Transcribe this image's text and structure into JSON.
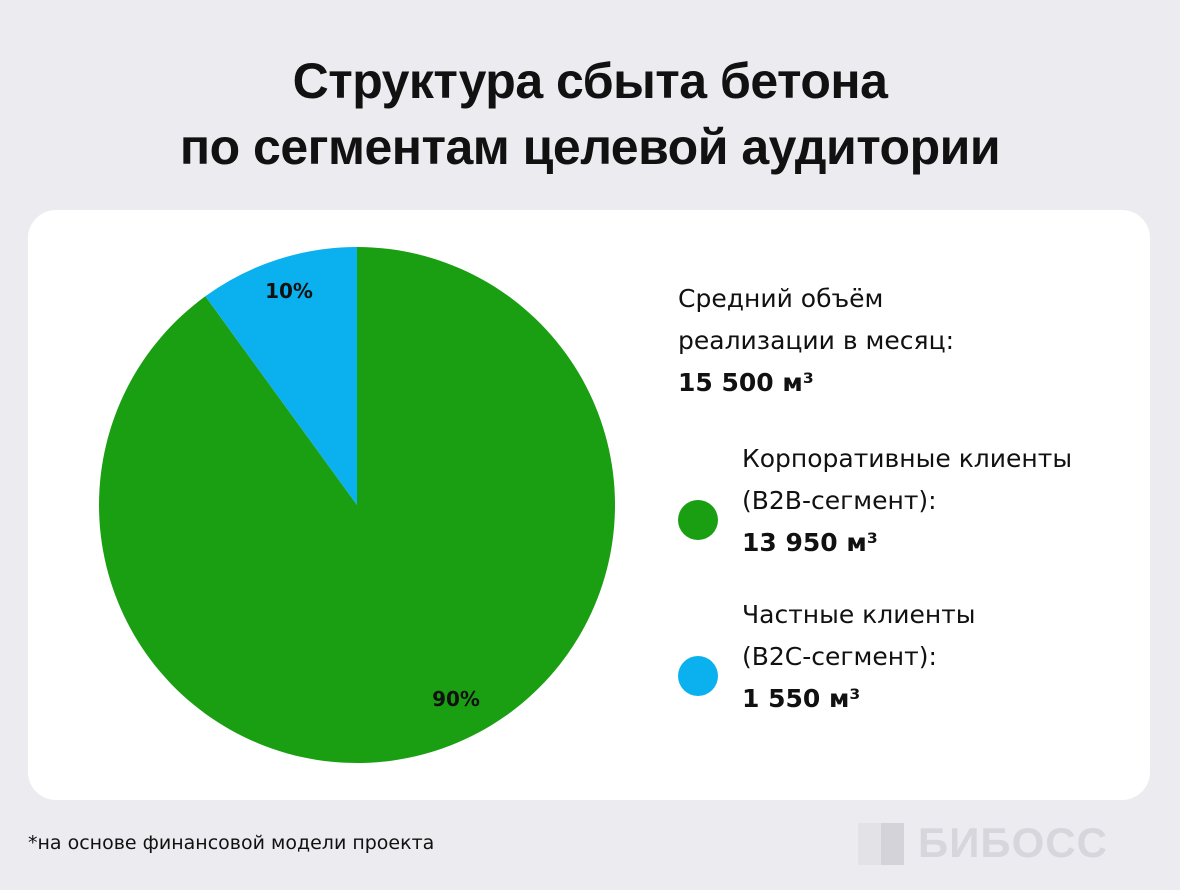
{
  "title": {
    "line1": "Структура сбыта бетона",
    "line2": "по сегментам целевой аудитории"
  },
  "stats": {
    "label_line1": "Средний объём",
    "label_line2": "реализации в месяц:",
    "value": "15 500 м³"
  },
  "legend": [
    {
      "line1": "Корпоративные клиенты",
      "line2": "(B2B-сегмент):",
      "value": "13 950 м³",
      "color": "#1a9e12"
    },
    {
      "line1": "Частные клиенты",
      "line2": "(B2C-сегмент):",
      "value": "1 550 м³",
      "color": "#0bb1ee"
    }
  ],
  "chart_data": {
    "type": "pie",
    "title": "Структура сбыта бетона по сегментам целевой аудитории",
    "categories": [
      "Корпоративные клиенты (B2B-сегмент)",
      "Частные клиенты (B2C-сегмент)"
    ],
    "values": [
      90,
      10
    ],
    "value_labels": [
      "90%",
      "10%"
    ],
    "units_total": "15 500 м³",
    "colors": [
      "#1a9e12",
      "#0bb1ee"
    ],
    "legend_placement": "right"
  },
  "footnote": "*на основе финансовой модели проекта",
  "logo": {
    "text": "БИБОСС"
  }
}
